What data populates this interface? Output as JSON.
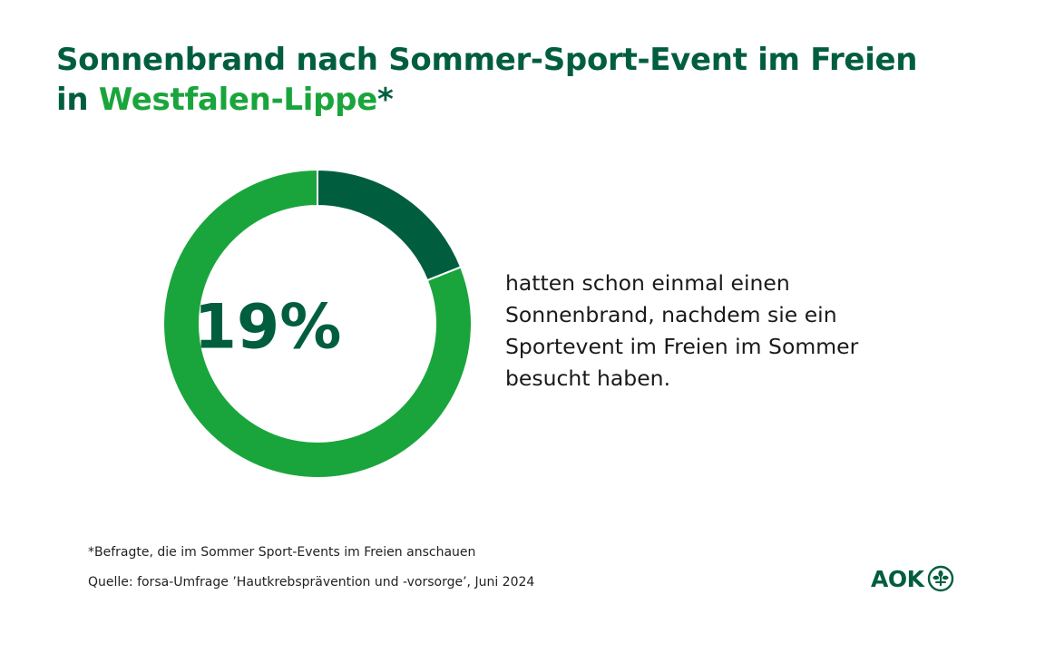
{
  "title": {
    "line1": "Sonnenbrand nach Sommer-Sport-Event im Freien",
    "line2_prefix": "in ",
    "line2_accent": "Westfalen-Lippe",
    "line2_suffix": "*"
  },
  "chart_data": {
    "type": "pie",
    "variant": "donut",
    "slices": [
      {
        "label": "hatten schon einmal einen Sonnenbrand",
        "value": 19,
        "color": "#005e3f"
      },
      {
        "label": "",
        "value": 81,
        "color": "#1aa53c"
      }
    ],
    "center_label": "19%",
    "description": "hatten schon einmal einen Sonnenbrand, nachdem sie ein Sportevent im Freien im Sommer besucht haben."
  },
  "footnote": "*Befragte, die im Sommer Sport-Events im Freien anschauen",
  "source": "Quelle: forsa-Umfrage ’Hautkrebsprävention und -vorsorge’, Juni 2024",
  "logo": {
    "text": "AOK",
    "icon": "aok-tree-icon",
    "color": "#005e3f"
  },
  "colors": {
    "dark_green": "#005e3f",
    "light_green": "#1aa53c"
  }
}
